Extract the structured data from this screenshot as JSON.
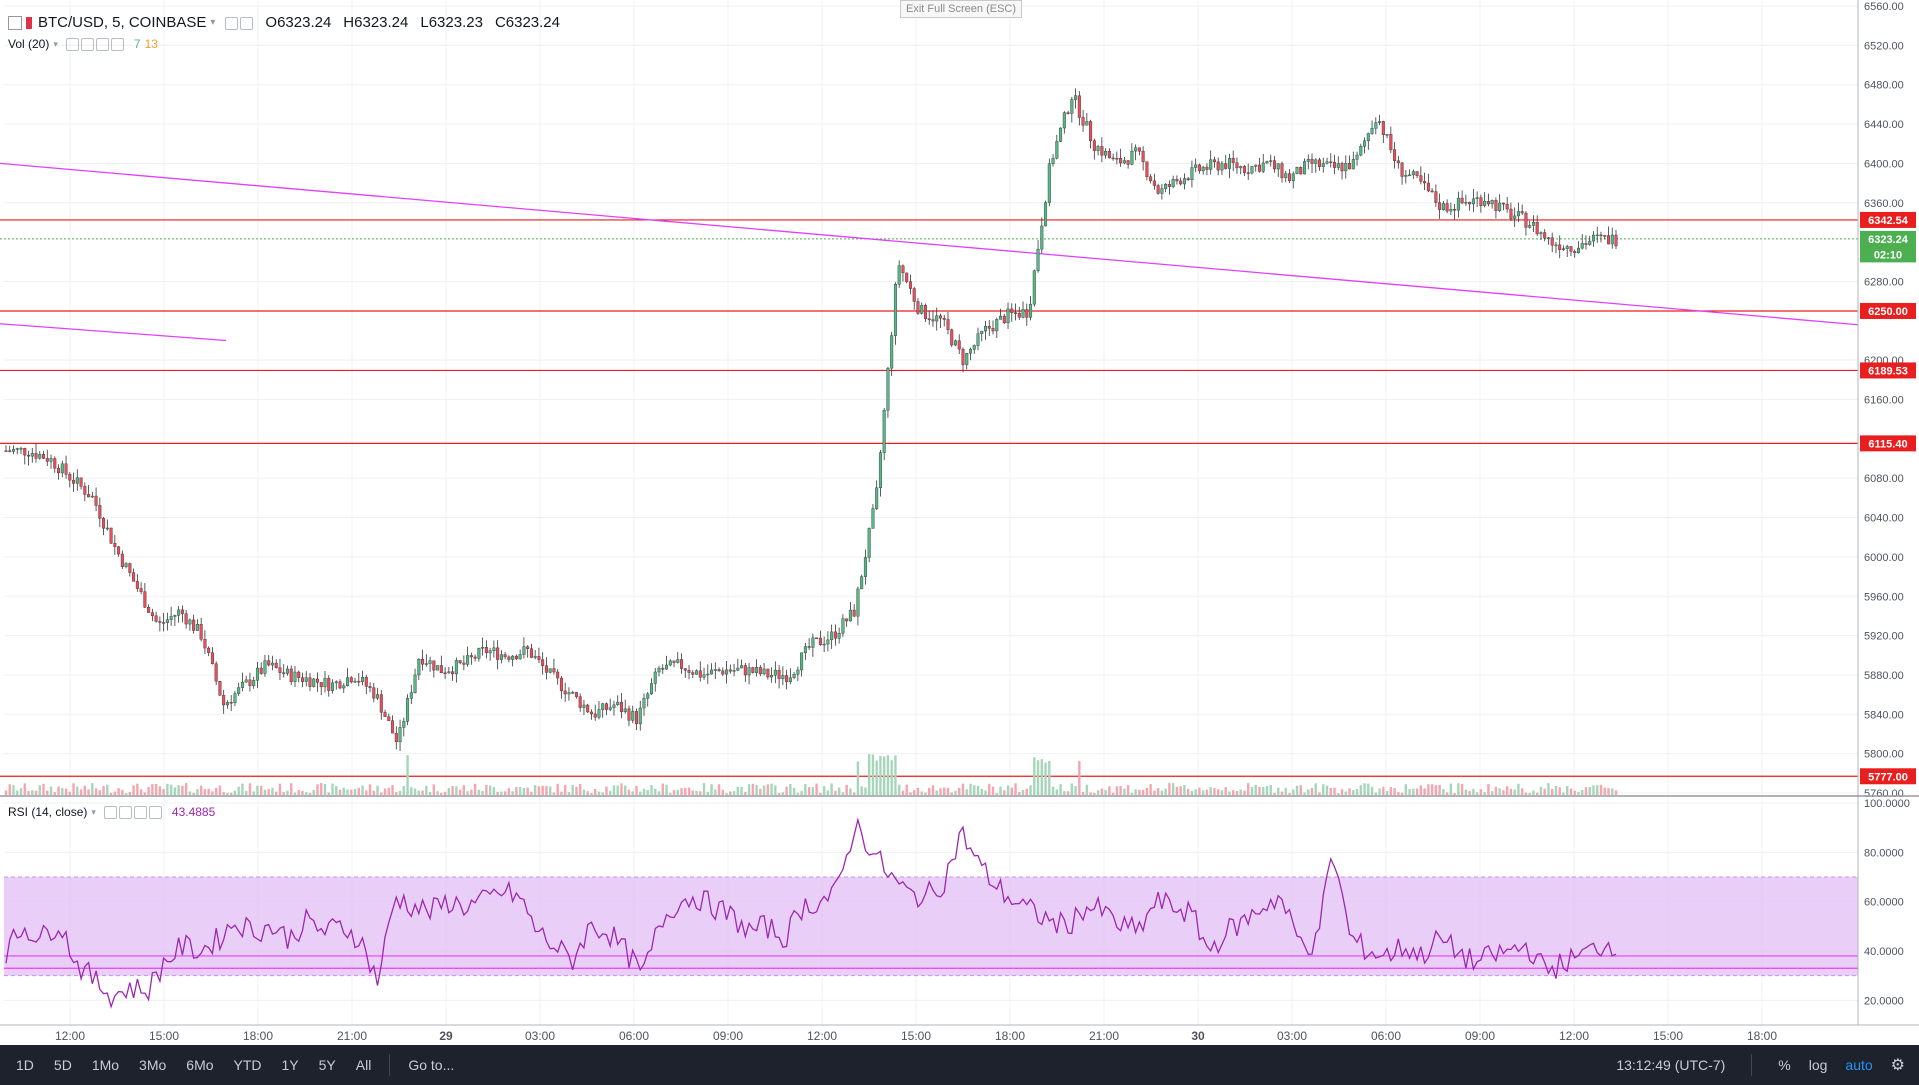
{
  "header": {
    "symbol": "BTC/USD, 5, COINBASE",
    "ohlc": {
      "o": "O6323.24",
      "h": "H6323.24",
      "l": "L6323.23",
      "c": "C6323.24"
    },
    "volume_indicator": {
      "label": "Vol (20)",
      "v1": "7",
      "v2": "13"
    },
    "exit_full_screen": "Exit Full Screen (ESC)"
  },
  "rsi": {
    "label": "RSI (14, close)",
    "value": "43.4885"
  },
  "price_axis": {
    "ticks": [
      "6560.00",
      "6520.00",
      "6480.00",
      "6440.00",
      "6400.00",
      "6360.00",
      "6280.00",
      "6200.00",
      "6160.00",
      "6080.00",
      "6040.00",
      "6000.00",
      "5960.00",
      "5920.00",
      "5880.00",
      "5840.00",
      "5800.00",
      "5760.00"
    ],
    "markers": [
      {
        "label": "6342.54",
        "color": "#e91e1e"
      },
      {
        "label": "6323.24",
        "color": "#4caf50"
      },
      {
        "label": "02:10",
        "color": "#4caf50"
      },
      {
        "label": "6250.00",
        "color": "#e91e1e"
      },
      {
        "label": "6189.53",
        "color": "#e91e1e"
      },
      {
        "label": "6115.40",
        "color": "#e91e1e"
      },
      {
        "label": "5777.00",
        "color": "#e91e1e"
      }
    ]
  },
  "rsi_axis": {
    "ticks": [
      "100.0000",
      "80.0000",
      "60.0000",
      "40.0000",
      "20.0000"
    ]
  },
  "time_axis": {
    "labels": [
      "12:00",
      "15:00",
      "18:00",
      "21:00",
      "29",
      "03:00",
      "06:00",
      "09:00",
      "12:00",
      "15:00",
      "18:00",
      "21:00",
      "30",
      "03:00",
      "06:00",
      "09:00",
      "12:00",
      "15:00",
      "18:00"
    ]
  },
  "bottom_toolbar": {
    "ranges": [
      "1D",
      "5D",
      "1Mo",
      "3Mo",
      "6Mo",
      "YTD",
      "1Y",
      "5Y",
      "All"
    ],
    "goto": "Go to...",
    "clock": "13:12:49 (UTC-7)",
    "percent": "%",
    "log": "log",
    "auto": "auto"
  },
  "colors": {
    "up_candle": "#53b987",
    "down_candle": "#eb4d5c",
    "level_line": "#e91e1e",
    "trend_line": "#e040fb",
    "rsi_line": "#9c27b0",
    "rsi_band": "#e1bff5"
  },
  "chart_data": {
    "type": "candlestick",
    "title": "BTC/USD, 5, COINBASE",
    "price_range": [
      5760,
      6560
    ],
    "horizontal_levels": [
      6342.54,
      6250.0,
      6189.53,
      6115.4,
      5777.0
    ],
    "last_price": 6323.24,
    "close_series": [
      {
        "t": "11:00",
        "v": 6108
      },
      {
        "t": "12:00",
        "v": 6108
      },
      {
        "t": "12:30",
        "v": 6100
      },
      {
        "t": "13:00",
        "v": 6080
      },
      {
        "t": "13:30",
        "v": 6060
      },
      {
        "t": "14:00",
        "v": 6010
      },
      {
        "t": "14:30",
        "v": 5970
      },
      {
        "t": "15:00",
        "v": 5930
      },
      {
        "t": "15:30",
        "v": 5945
      },
      {
        "t": "16:00",
        "v": 5920
      },
      {
        "t": "16:30",
        "v": 5850
      },
      {
        "t": "17:00",
        "v": 5870
      },
      {
        "t": "17:30",
        "v": 5890
      },
      {
        "t": "18:00",
        "v": 5880
      },
      {
        "t": "19:00",
        "v": 5875
      },
      {
        "t": "20:00",
        "v": 5870
      },
      {
        "t": "21:00",
        "v": 5880
      },
      {
        "t": "21:30",
        "v": 5860
      },
      {
        "t": "22:00",
        "v": 5810
      },
      {
        "t": "22:30",
        "v": 5900
      },
      {
        "t": "23:00",
        "v": 5885
      },
      {
        "t": "00:00",
        "v": 5890
      },
      {
        "t": "01:00",
        "v": 5905
      },
      {
        "t": "02:00",
        "v": 5900
      },
      {
        "t": "03:00",
        "v": 5905
      },
      {
        "t": "04:00",
        "v": 5880
      },
      {
        "t": "05:00",
        "v": 5860
      },
      {
        "t": "05:30",
        "v": 5840
      },
      {
        "t": "06:00",
        "v": 5850
      },
      {
        "t": "06:30",
        "v": 5835
      },
      {
        "t": "07:00",
        "v": 5885
      },
      {
        "t": "08:00",
        "v": 5890
      },
      {
        "t": "09:00",
        "v": 5880
      },
      {
        "t": "10:00",
        "v": 5885
      },
      {
        "t": "11:00",
        "v": 5885
      },
      {
        "t": "12:00",
        "v": 5880
      },
      {
        "t": "13:00",
        "v": 5880
      },
      {
        "t": "14:00",
        "v": 5910
      },
      {
        "t": "14:30",
        "v": 5920
      },
      {
        "t": "15:00",
        "v": 5945
      },
      {
        "t": "15:10",
        "v": 6060
      },
      {
        "t": "15:20",
        "v": 6300
      },
      {
        "t": "15:30",
        "v": 6250
      },
      {
        "t": "16:00",
        "v": 6240
      },
      {
        "t": "16:30",
        "v": 6200
      },
      {
        "t": "17:00",
        "v": 6230
      },
      {
        "t": "17:30",
        "v": 6245
      },
      {
        "t": "18:00",
        "v": 6250
      },
      {
        "t": "18:15",
        "v": 6400
      },
      {
        "t": "18:30",
        "v": 6470
      },
      {
        "t": "19:00",
        "v": 6420
      },
      {
        "t": "19:30",
        "v": 6400
      },
      {
        "t": "20:00",
        "v": 6410
      },
      {
        "t": "20:30",
        "v": 6370
      },
      {
        "t": "21:00",
        "v": 6385
      },
      {
        "t": "22:00",
        "v": 6395
      },
      {
        "t": "23:00",
        "v": 6400
      },
      {
        "t": "00:00",
        "v": 6395
      },
      {
        "t": "01:00",
        "v": 6400
      },
      {
        "t": "02:00",
        "v": 6385
      },
      {
        "t": "03:00",
        "v": 6400
      },
      {
        "t": "04:00",
        "v": 6395
      },
      {
        "t": "05:00",
        "v": 6400
      },
      {
        "t": "05:30",
        "v": 6450
      },
      {
        "t": "06:00",
        "v": 6395
      },
      {
        "t": "07:00",
        "v": 6380
      },
      {
        "t": "07:30",
        "v": 6355
      },
      {
        "t": "08:00",
        "v": 6360
      },
      {
        "t": "09:00",
        "v": 6365
      },
      {
        "t": "10:00",
        "v": 6350
      },
      {
        "t": "11:00",
        "v": 6340
      },
      {
        "t": "11:30",
        "v": 6320
      },
      {
        "t": "12:00",
        "v": 6315
      },
      {
        "t": "12:30",
        "v": 6323
      },
      {
        "t": "13:10",
        "v": 6323
      }
    ],
    "rsi_range": [
      10,
      100
    ],
    "rsi_band": [
      30,
      70
    ],
    "rsi_series": [
      40,
      50,
      45,
      52,
      35,
      28,
      22,
      25,
      24,
      36,
      42,
      40,
      45,
      52,
      48,
      50,
      45,
      52,
      48,
      50,
      45,
      28,
      62,
      58,
      56,
      60,
      58,
      60,
      64,
      62,
      48,
      42,
      36,
      50,
      48,
      40,
      30,
      52,
      60,
      62,
      58,
      54,
      48,
      50,
      45,
      58,
      60,
      64,
      92,
      80,
      70,
      63,
      62,
      68,
      88,
      75,
      66,
      60,
      56,
      52,
      50,
      58,
      56,
      50,
      48,
      60,
      58,
      55,
      40,
      48,
      52,
      58,
      62,
      45,
      42,
      80,
      45,
      40,
      38,
      42,
      38,
      45,
      40,
      35,
      38,
      40,
      42,
      32,
      35,
      38,
      42,
      43
    ]
  }
}
